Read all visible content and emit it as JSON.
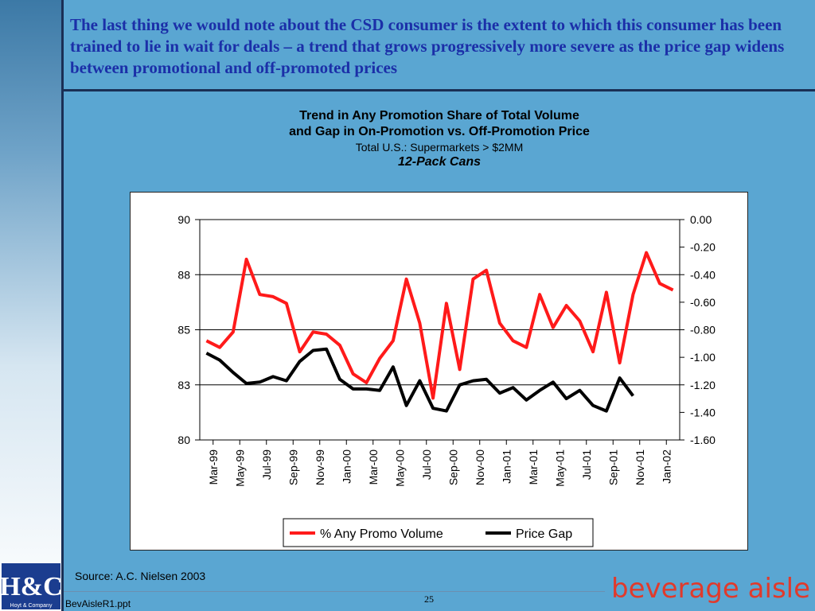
{
  "headline": "The last thing we would note about the CSD consumer is the extent to which this consumer has been trained to lie in wait for deals – a trend that grows progressively more severe as the price gap widens between promotional and off-promoted prices",
  "footer": {
    "source": "Source:  A.C. Nielsen 2003",
    "file": "BevAisleR1.ppt",
    "page": "25",
    "brand": "beverage aisle",
    "logo_text": "H&C",
    "logo_sub": "Hoyt & Company"
  },
  "colors": {
    "promo": "#ff1a1a",
    "gap": "#000000",
    "title": "#1b2fa8",
    "background": "#5aa6d2",
    "brand": "#e03a2c"
  },
  "chart_data": {
    "type": "line",
    "title": "Trend in Any Promotion Share of Total Volume",
    "title_line2": "and Gap in On-Promotion vs. Off-Promotion Price",
    "subtitle": "Total U.S.: Supermarkets > $2MM",
    "subtitle2": "12-Pack Cans",
    "x_tick_labels": [
      "Mar-99",
      "May-99",
      "Jul-99",
      "Sep-99",
      "Nov-99",
      "Jan-00",
      "Mar-00",
      "May-00",
      "Jul-00",
      "Sep-00",
      "Nov-00",
      "Jan-01",
      "Mar-01",
      "May-01",
      "Jul-01",
      "Sep-01",
      "Nov-01",
      "Jan-02"
    ],
    "left_axis": {
      "ticks": [
        "90",
        "88",
        "85",
        "83",
        "80"
      ],
      "range": [
        80,
        90
      ]
    },
    "right_axis": {
      "ticks": [
        "0.00",
        "-0.20",
        "-0.40",
        "-0.60",
        "-0.80",
        "-1.00",
        "-1.20",
        "-1.40",
        "-1.60"
      ],
      "range": [
        -1.6,
        0.0
      ]
    },
    "grid": "horizontal",
    "legend_position": "bottom",
    "series": [
      {
        "name": "% Any Promo Volume",
        "axis": "left",
        "values": [
          84.5,
          84.2,
          84.9,
          88.2,
          86.6,
          86.5,
          86.2,
          84.0,
          84.9,
          84.8,
          84.3,
          83.0,
          82.6,
          83.7,
          84.5,
          87.3,
          85.3,
          81.9,
          86.2,
          83.2,
          87.3,
          87.7,
          85.3,
          84.5,
          84.2,
          86.6,
          85.1,
          86.1,
          85.4,
          84.0,
          86.7,
          83.5,
          86.6,
          88.5,
          87.1,
          86.8
        ]
      },
      {
        "name": "Price Gap",
        "axis": "right",
        "values": [
          -0.97,
          -1.02,
          -1.11,
          -1.19,
          -1.18,
          -1.14,
          -1.17,
          -1.03,
          -0.95,
          -0.94,
          -1.16,
          -1.23,
          -1.23,
          -1.24,
          -1.07,
          -1.35,
          -1.17,
          -1.37,
          -1.39,
          -1.2,
          -1.17,
          -1.16,
          -1.26,
          -1.22,
          -1.31,
          -1.24,
          -1.18,
          -1.3,
          -1.24,
          -1.35,
          -1.39,
          -1.15,
          -1.28
        ]
      }
    ]
  }
}
